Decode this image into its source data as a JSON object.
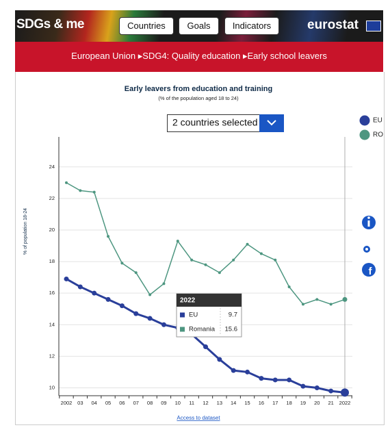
{
  "header": {
    "logo": "SDGs & me",
    "buttons": [
      "Countries",
      "Goals",
      "Indicators"
    ],
    "brand": "eurostat"
  },
  "breadcrumb": [
    "European Union",
    "SDG4: Quality education",
    "Early school leavers"
  ],
  "selector": "2 countries selected",
  "link": "Access to dataset",
  "chart_data": {
    "type": "line",
    "title": "Early leavers from education and training",
    "subtitle": "(% of the population aged 18 to 24)",
    "y_label": "% of population 18-24",
    "categories": [
      "2002",
      "03",
      "04",
      "05",
      "06",
      "07",
      "08",
      "09",
      "10",
      "11",
      "12",
      "13",
      "14",
      "15",
      "16",
      "17",
      "18",
      "19",
      "20",
      "21",
      "2022"
    ],
    "series": [
      {
        "name": "EU",
        "color": "#2a3f9a",
        "values": [
          16.9,
          16.4,
          16.0,
          15.6,
          15.2,
          14.7,
          14.4,
          14.0,
          13.8,
          13.4,
          12.6,
          11.8,
          11.1,
          11.0,
          10.6,
          10.5,
          10.5,
          10.1,
          10.0,
          9.8,
          9.7
        ]
      },
      {
        "name": "Romania",
        "color": "#4d9680",
        "values": [
          23.0,
          22.5,
          22.4,
          19.6,
          17.9,
          17.3,
          15.9,
          16.6,
          19.3,
          18.1,
          17.8,
          17.3,
          18.1,
          19.1,
          18.5,
          18.1,
          16.4,
          15.3,
          15.6,
          15.3,
          15.6
        ]
      }
    ],
    "legend_labels": [
      "EU",
      "RO"
    ],
    "ylim": [
      9.5,
      25.9
    ],
    "yticks": [
      10,
      12,
      14,
      16,
      18,
      20,
      22,
      24
    ],
    "grid": true
  }
}
